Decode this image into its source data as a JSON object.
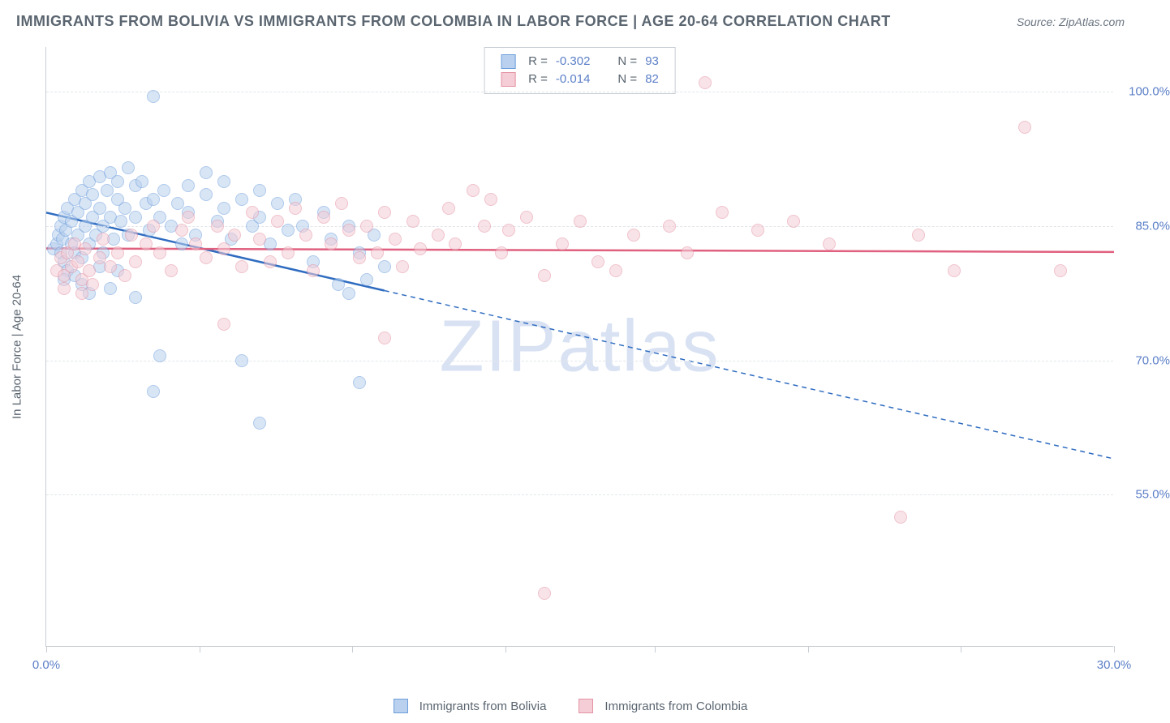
{
  "title": "IMMIGRANTS FROM BOLIVIA VS IMMIGRANTS FROM COLOMBIA IN LABOR FORCE | AGE 20-64 CORRELATION CHART",
  "source_label": "Source: ZipAtlas.com",
  "y_axis_title": "In Labor Force | Age 20-64",
  "watermark": "ZIPatlas",
  "chart": {
    "type": "scatter",
    "xlim": [
      0,
      30
    ],
    "ylim": [
      38,
      105
    ],
    "x_ticks": [
      0,
      4.3,
      8.6,
      12.9,
      17.1,
      21.4,
      25.7,
      30
    ],
    "x_tick_labels": {
      "0": "0.0%",
      "30": "30.0%"
    },
    "y_gridlines": [
      55,
      70,
      85,
      100
    ],
    "y_tick_labels": {
      "55": "55.0%",
      "70": "70.0%",
      "85": "85.0%",
      "100": "100.0%"
    },
    "background_color": "#ffffff",
    "grid_color": "#e2e6ea",
    "axis_color": "#c7cdd3",
    "marker_radius": 8,
    "marker_stroke_width": 1.5,
    "series": [
      {
        "id": "bolivia",
        "label": "Immigrants from Bolivia",
        "fill": "#b9d1ee",
        "stroke": "#6d9edc",
        "fill_opacity": 0.55,
        "r_value": "-0.302",
        "n_value": "93",
        "trend": {
          "x1": 0,
          "y1": 86.5,
          "x2": 30,
          "y2": 59,
          "solid_until_x": 9.5,
          "color": "#2f6cc0",
          "width": 2.5
        },
        "points": [
          [
            0.2,
            82.5
          ],
          [
            0.3,
            83.0
          ],
          [
            0.35,
            84.0
          ],
          [
            0.4,
            82.0
          ],
          [
            0.4,
            85.0
          ],
          [
            0.45,
            83.5
          ],
          [
            0.5,
            86.0
          ],
          [
            0.5,
            81.0
          ],
          [
            0.55,
            84.5
          ],
          [
            0.6,
            87.0
          ],
          [
            0.6,
            80.0
          ],
          [
            0.7,
            85.5
          ],
          [
            0.7,
            83.0
          ],
          [
            0.8,
            88.0
          ],
          [
            0.8,
            82.0
          ],
          [
            0.9,
            86.5
          ],
          [
            0.9,
            84.0
          ],
          [
            1.0,
            89.0
          ],
          [
            1.0,
            81.5
          ],
          [
            1.1,
            87.5
          ],
          [
            1.1,
            85.0
          ],
          [
            1.2,
            90.0
          ],
          [
            1.2,
            83.0
          ],
          [
            1.3,
            88.5
          ],
          [
            1.3,
            86.0
          ],
          [
            1.4,
            84.0
          ],
          [
            1.5,
            90.5
          ],
          [
            1.5,
            87.0
          ],
          [
            1.6,
            85.0
          ],
          [
            1.6,
            82.0
          ],
          [
            1.7,
            89.0
          ],
          [
            1.8,
            91.0
          ],
          [
            1.8,
            86.0
          ],
          [
            1.9,
            83.5
          ],
          [
            2.0,
            88.0
          ],
          [
            2.0,
            90.0
          ],
          [
            2.1,
            85.5
          ],
          [
            2.2,
            87.0
          ],
          [
            2.3,
            91.5
          ],
          [
            2.3,
            84.0
          ],
          [
            2.5,
            89.5
          ],
          [
            2.5,
            86.0
          ],
          [
            2.7,
            90.0
          ],
          [
            2.8,
            87.5
          ],
          [
            2.9,
            84.5
          ],
          [
            3.0,
            88.0
          ],
          [
            3.0,
            99.5
          ],
          [
            3.2,
            86.0
          ],
          [
            3.3,
            89.0
          ],
          [
            3.5,
            85.0
          ],
          [
            3.7,
            87.5
          ],
          [
            3.8,
            83.0
          ],
          [
            4.0,
            89.5
          ],
          [
            4.0,
            86.5
          ],
          [
            4.2,
            84.0
          ],
          [
            4.5,
            88.5
          ],
          [
            4.8,
            85.5
          ],
          [
            5.0,
            90.0
          ],
          [
            5.0,
            87.0
          ],
          [
            5.2,
            83.5
          ],
          [
            5.5,
            88.0
          ],
          [
            5.8,
            85.0
          ],
          [
            6.0,
            89.0
          ],
          [
            6.0,
            86.0
          ],
          [
            6.3,
            83.0
          ],
          [
            6.5,
            87.5
          ],
          [
            6.8,
            84.5
          ],
          [
            7.0,
            88.0
          ],
          [
            7.2,
            85.0
          ],
          [
            7.5,
            81.0
          ],
          [
            7.8,
            86.5
          ],
          [
            8.0,
            83.5
          ],
          [
            8.2,
            78.5
          ],
          [
            8.5,
            85.0
          ],
          [
            8.8,
            82.0
          ],
          [
            9.0,
            79.0
          ],
          [
            9.2,
            84.0
          ],
          [
            9.5,
            80.5
          ],
          [
            1.2,
            77.5
          ],
          [
            1.8,
            78.0
          ],
          [
            2.5,
            77.0
          ],
          [
            3.0,
            66.5
          ],
          [
            3.2,
            70.5
          ],
          [
            5.5,
            70.0
          ],
          [
            6.0,
            63.0
          ],
          [
            8.5,
            77.5
          ],
          [
            8.8,
            67.5
          ],
          [
            0.5,
            79.0
          ],
          [
            1.0,
            78.5
          ],
          [
            1.5,
            80.5
          ],
          [
            4.5,
            91.0
          ],
          [
            2.0,
            80.0
          ],
          [
            0.8,
            79.5
          ]
        ]
      },
      {
        "id": "colombia",
        "label": "Immigrants from Colombia",
        "fill": "#f4cdd7",
        "stroke": "#e492a3",
        "fill_opacity": 0.55,
        "r_value": "-0.014",
        "n_value": "82",
        "trend": {
          "x1": 0,
          "y1": 82.5,
          "x2": 30,
          "y2": 82.1,
          "solid_until_x": 30,
          "color": "#e0607f",
          "width": 2.5
        },
        "points": [
          [
            0.3,
            80.0
          ],
          [
            0.4,
            81.5
          ],
          [
            0.5,
            79.5
          ],
          [
            0.6,
            82.0
          ],
          [
            0.7,
            80.5
          ],
          [
            0.8,
            83.0
          ],
          [
            0.9,
            81.0
          ],
          [
            1.0,
            79.0
          ],
          [
            1.1,
            82.5
          ],
          [
            1.2,
            80.0
          ],
          [
            1.3,
            78.5
          ],
          [
            1.5,
            81.5
          ],
          [
            1.6,
            83.5
          ],
          [
            1.8,
            80.5
          ],
          [
            2.0,
            82.0
          ],
          [
            2.2,
            79.5
          ],
          [
            2.4,
            84.0
          ],
          [
            2.5,
            81.0
          ],
          [
            2.8,
            83.0
          ],
          [
            3.0,
            85.0
          ],
          [
            3.2,
            82.0
          ],
          [
            3.5,
            80.0
          ],
          [
            3.8,
            84.5
          ],
          [
            4.0,
            86.0
          ],
          [
            4.2,
            83.0
          ],
          [
            4.5,
            81.5
          ],
          [
            4.8,
            85.0
          ],
          [
            5.0,
            82.5
          ],
          [
            5.3,
            84.0
          ],
          [
            5.5,
            80.5
          ],
          [
            5.8,
            86.5
          ],
          [
            6.0,
            83.5
          ],
          [
            6.3,
            81.0
          ],
          [
            6.5,
            85.5
          ],
          [
            6.8,
            82.0
          ],
          [
            7.0,
            87.0
          ],
          [
            7.3,
            84.0
          ],
          [
            7.5,
            80.0
          ],
          [
            7.8,
            86.0
          ],
          [
            8.0,
            83.0
          ],
          [
            8.3,
            87.5
          ],
          [
            8.5,
            84.5
          ],
          [
            8.8,
            81.5
          ],
          [
            9.0,
            85.0
          ],
          [
            9.3,
            82.0
          ],
          [
            9.5,
            86.5
          ],
          [
            9.8,
            83.5
          ],
          [
            10.0,
            80.5
          ],
          [
            10.3,
            85.5
          ],
          [
            10.5,
            82.5
          ],
          [
            11.0,
            84.0
          ],
          [
            11.3,
            87.0
          ],
          [
            11.5,
            83.0
          ],
          [
            12.0,
            89.0
          ],
          [
            12.3,
            85.0
          ],
          [
            12.5,
            88.0
          ],
          [
            12.8,
            82.0
          ],
          [
            13.0,
            84.5
          ],
          [
            13.5,
            86.0
          ],
          [
            14.0,
            79.5
          ],
          [
            14.5,
            83.0
          ],
          [
            15.0,
            85.5
          ],
          [
            15.5,
            81.0
          ],
          [
            16.0,
            80.0
          ],
          [
            16.5,
            84.0
          ],
          [
            17.5,
            85.0
          ],
          [
            18.0,
            82.0
          ],
          [
            18.5,
            101.0
          ],
          [
            19.0,
            86.5
          ],
          [
            20.0,
            84.5
          ],
          [
            21.0,
            85.5
          ],
          [
            22.0,
            83.0
          ],
          [
            24.5,
            84.0
          ],
          [
            25.5,
            80.0
          ],
          [
            27.5,
            96.0
          ],
          [
            28.5,
            80.0
          ],
          [
            5.0,
            74.0
          ],
          [
            9.5,
            72.5
          ],
          [
            14.0,
            44.0
          ],
          [
            24.0,
            52.5
          ],
          [
            0.5,
            78.0
          ],
          [
            1.0,
            77.5
          ]
        ]
      }
    ]
  },
  "legend_top": {
    "r_label": "R =",
    "n_label": "N ="
  },
  "legend_bottom": {
    "items": [
      "Immigrants from Bolivia",
      "Immigrants from Colombia"
    ]
  }
}
